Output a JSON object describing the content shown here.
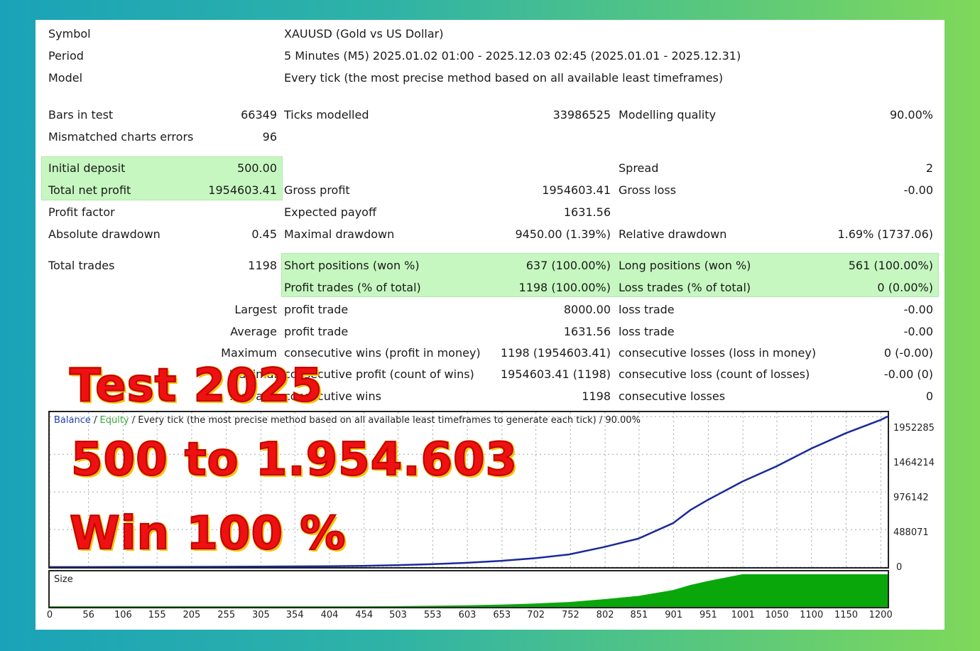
{
  "header": {
    "symbol_label": "Symbol",
    "symbol_value": "XAUUSD (Gold vs US Dollar)",
    "period_label": "Period",
    "period_value": "5 Minutes (M5) 2025.01.02 01:00 - 2025.12.03 02:45 (2025.01.01 - 2025.12.31)",
    "model_label": "Model",
    "model_value": "Every tick (the most precise method based on all available least timeframes)"
  },
  "stats": {
    "bars_label": "Bars in test",
    "bars_value": "66349",
    "ticks_label": "Ticks modelled",
    "ticks_value": "33986525",
    "quality_label": "Modelling quality",
    "quality_value": "90.00%",
    "mismatch_label": "Mismatched charts errors",
    "mismatch_value": "96",
    "deposit_label": "Initial deposit",
    "deposit_value": "500.00",
    "spread_label": "Spread",
    "spread_value": "2",
    "net_label": "Total net profit",
    "net_value": "1954603.41",
    "gross_profit_label": "Gross profit",
    "gross_profit_value": "1954603.41",
    "gross_loss_label": "Gross loss",
    "gross_loss_value": "-0.00",
    "pf_label": "Profit factor",
    "payoff_label": "Expected payoff",
    "payoff_value": "1631.56",
    "abs_dd_label": "Absolute drawdown",
    "abs_dd_value": "0.45",
    "max_dd_label": "Maximal drawdown",
    "max_dd_value": "9450.00 (1.39%)",
    "rel_dd_label": "Relative drawdown",
    "rel_dd_value": "1.69% (1737.06)",
    "trades_label": "Total trades",
    "trades_value": "1198",
    "short_label": "Short positions (won %)",
    "short_value": "637 (100.00%)",
    "long_label": "Long positions (won %)",
    "long_value": "561 (100.00%)",
    "ptrades_label": "Profit trades (% of total)",
    "ptrades_value": "1198 (100.00%)",
    "ltrades_label": "Loss trades (% of total)",
    "ltrades_value": "0 (0.00%)",
    "largest_label": "Largest",
    "largest_profit_label": "profit trade",
    "largest_profit_value": "8000.00",
    "largest_loss_label": "loss trade",
    "largest_loss_value": "-0.00",
    "average_label": "Average",
    "average_profit_label": "profit trade",
    "average_profit_value": "1631.56",
    "average_loss_label": "loss trade",
    "average_loss_value": "-0.00",
    "maximum_label": "Maximum",
    "max_wins_label": "consecutive wins (profit in money)",
    "max_wins_value": "1198 (1954603.41)",
    "max_losses_label": "consecutive losses (loss in money)",
    "max_losses_value": "0 (-0.00)",
    "maximal_label": "Maximal",
    "maximal_profit_label": "consecutive profit (count of wins)",
    "maximal_profit_value": "1954603.41 (1198)",
    "maximal_loss_label": "consecutive loss (count of losses)",
    "maximal_loss_value": "-0.00 (0)",
    "avg2_label": "Average",
    "avg_wins_label": "consecutive wins",
    "avg_wins_value": "1198",
    "avg_losses_label": "consecutive losses",
    "avg_losses_value": "0"
  },
  "chart": {
    "legend_balance": "Balance",
    "legend_sep1": " / ",
    "legend_equity": "Equity",
    "legend_rest": " / Every tick (the most precise method based on all available least timeframes to generate each tick) / 90.00%",
    "size_label": "Size",
    "line_color": "#1a2a9c",
    "size_color": "#0aa70a",
    "y_ticks": [
      "1952285",
      "1464214",
      "976142",
      "488071",
      "0"
    ],
    "x_ticks": [
      "0",
      "56",
      "106",
      "155",
      "205",
      "255",
      "305",
      "354",
      "404",
      "454",
      "503",
      "553",
      "603",
      "653",
      "702",
      "752",
      "802",
      "851",
      "901",
      "951",
      "1001",
      "1050",
      "1100",
      "1150",
      "1200"
    ]
  },
  "chart_data": {
    "type": "line",
    "title": "",
    "xlabel": "",
    "ylabel": "",
    "ylim": [
      0,
      2010000
    ],
    "xlim": [
      0,
      1210
    ],
    "series": [
      {
        "name": "Balance",
        "x": [
          0,
          100,
          200,
          300,
          400,
          450,
          500,
          550,
          600,
          650,
          700,
          750,
          800,
          850,
          900,
          925,
          950,
          1000,
          1050,
          1100,
          1150,
          1200,
          1210
        ],
        "y": [
          500,
          1500,
          3500,
          7000,
          12000,
          17000,
          26000,
          38000,
          55000,
          80000,
          115000,
          165000,
          260000,
          370000,
          570000,
          740000,
          870000,
          1110000,
          1310000,
          1540000,
          1740000,
          1910000,
          1954603
        ]
      }
    ]
  },
  "overlay": {
    "line1": "Test 2025",
    "line2": "500 to 1.954.603",
    "line3": "Win 100 %"
  }
}
